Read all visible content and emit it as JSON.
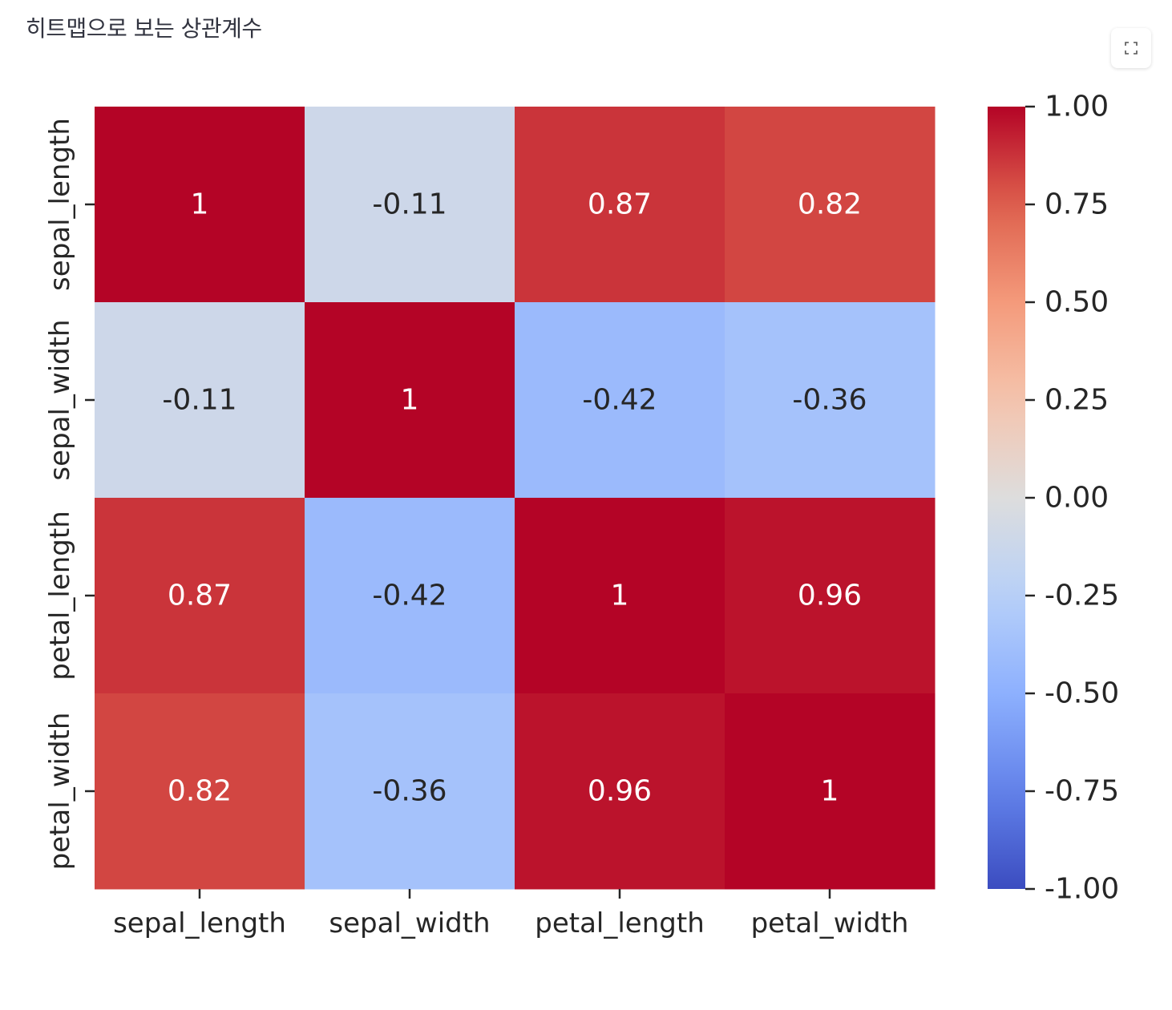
{
  "page": {
    "title": "히트맵으로 보는 상관계수"
  },
  "toolbar": {
    "fullscreen_icon": "expand-icon"
  },
  "chart_data": {
    "type": "heatmap",
    "title": "",
    "x_labels": [
      "sepal_length",
      "sepal_width",
      "petal_length",
      "petal_width"
    ],
    "y_labels": [
      "sepal_length",
      "sepal_width",
      "petal_length",
      "petal_width"
    ],
    "values": [
      [
        1.0,
        -0.11,
        0.87,
        0.82
      ],
      [
        -0.11,
        1.0,
        -0.42,
        -0.36
      ],
      [
        0.87,
        -0.42,
        1.0,
        0.96
      ],
      [
        0.82,
        -0.36,
        0.96,
        1.0
      ]
    ],
    "annotations": [
      [
        "1",
        "-0.11",
        "0.87",
        "0.82"
      ],
      [
        "-0.11",
        "1",
        "-0.42",
        "-0.36"
      ],
      [
        "0.87",
        "-0.42",
        "1",
        "0.96"
      ],
      [
        "0.82",
        "-0.36",
        "0.96",
        "1"
      ]
    ],
    "colormap": "coolwarm",
    "vmin": -1.0,
    "vmax": 1.0,
    "colorbar_ticks": [
      1.0,
      0.75,
      0.5,
      0.25,
      0.0,
      -0.25,
      -0.5,
      -0.75,
      -1.0
    ],
    "colorbar_tick_labels": [
      "1.00",
      "0.75",
      "0.50",
      "0.25",
      "0.00",
      "-0.25",
      "-0.50",
      "-0.75",
      "-1.00"
    ],
    "colors": {
      "low": "#3b4cc0",
      "mid": "#dddddd",
      "high": "#b40426"
    }
  }
}
